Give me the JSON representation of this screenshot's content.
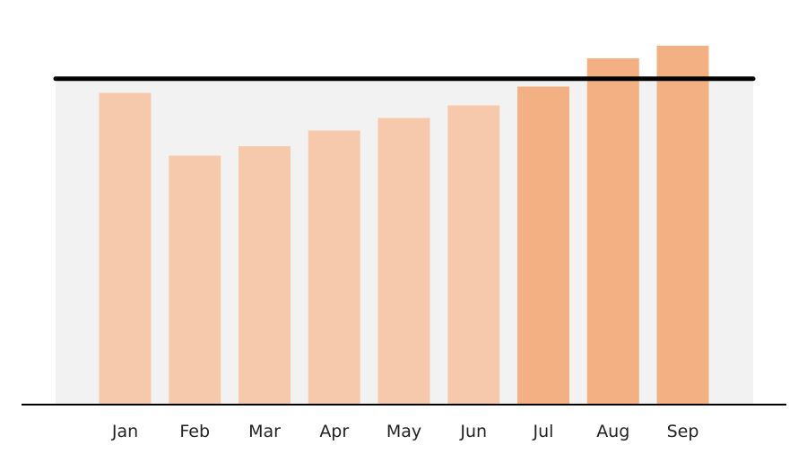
{
  "chart_data": {
    "type": "bar",
    "categories": [
      "Jan",
      "Feb",
      "Mar",
      "Apr",
      "May",
      "Jun",
      "Jul",
      "Aug",
      "Sep"
    ],
    "values": [
      99,
      79,
      82,
      87,
      91,
      95,
      101,
      110,
      114
    ],
    "ylim": [
      0,
      120
    ],
    "target_value": 103.5,
    "target_band": true,
    "highlighted_categories": [
      "Jul",
      "Aug",
      "Sep"
    ],
    "grid": false,
    "legend": "none",
    "title": "",
    "xlabel": "",
    "ylabel": ""
  },
  "colors": {
    "bar": "#f7c9ac",
    "bar_highlight": "#f3b083",
    "band": "#f2f2f3",
    "target_line": "#000000",
    "axis": "#000000"
  }
}
